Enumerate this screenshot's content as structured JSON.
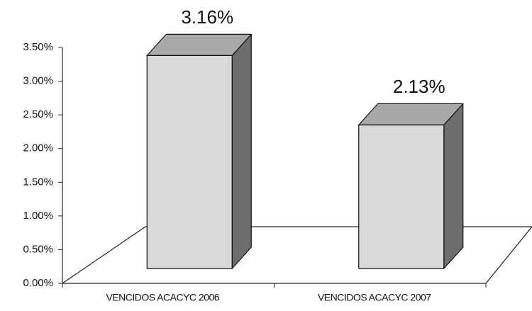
{
  "chart_data": {
    "type": "bar3d",
    "categories": [
      "VENCIDOS ACACYC 2006",
      "VENCIDOS ACACYC 2007"
    ],
    "values": [
      3.16,
      2.13
    ],
    "value_labels": [
      "3.16%",
      "2.13%"
    ],
    "color": "#d9d9d9",
    "ylim": [
      0,
      3.5
    ],
    "yticks": [
      {
        "value": 0,
        "label": "0.00%"
      },
      {
        "value": 0.5,
        "label": "0.50%"
      },
      {
        "value": 1,
        "label": "1.00%"
      },
      {
        "value": 1.5,
        "label": "1.50%"
      },
      {
        "value": 2,
        "label": "2.00%"
      },
      {
        "value": 2.5,
        "label": "2.50%"
      },
      {
        "value": 3,
        "label": "3.00%"
      },
      {
        "value": 3.5,
        "label": "3.50%"
      }
    ],
    "grid": false
  }
}
